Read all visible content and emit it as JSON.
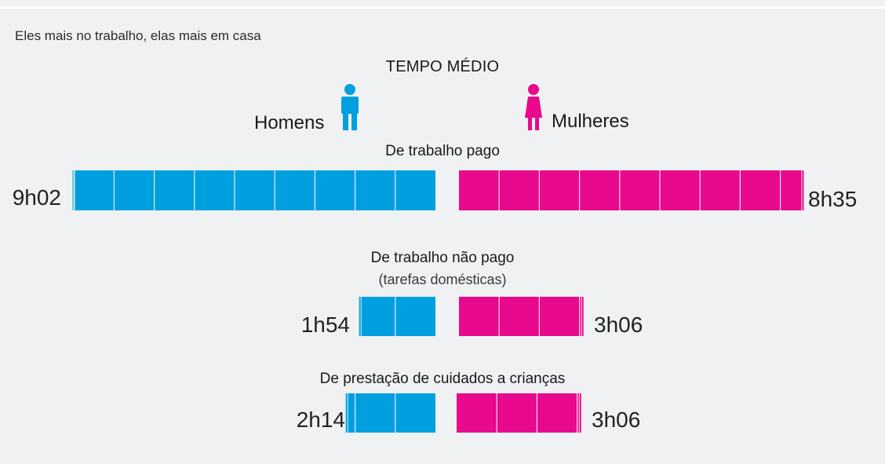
{
  "subtitle": "Eles mais no trabalho, elas mais em casa",
  "chart_data": {
    "type": "bar",
    "title": "TEMPO MÉDIO",
    "unit": "horas",
    "colors": {
      "men": "#009fdf",
      "women": "#e8098c"
    },
    "legend": {
      "men": "Homens",
      "women": "Mulheres"
    },
    "categories": [
      {
        "title": "De trabalho pago",
        "note": "",
        "men": {
          "label": "9h02",
          "hours": 9.033
        },
        "women": {
          "label": "8h35",
          "hours": 8.583
        }
      },
      {
        "title": "De trabalho não pago",
        "note": "(tarefas domésticas)",
        "men": {
          "label": "1h54",
          "hours": 1.9
        },
        "women": {
          "label": "3h06",
          "hours": 3.1
        }
      },
      {
        "title": "De prestação de cuidados a crianças",
        "note": "",
        "men": {
          "label": "2h14",
          "hours": 2.233
        },
        "women": {
          "label": "3h06",
          "hours": 3.1
        }
      }
    ]
  }
}
